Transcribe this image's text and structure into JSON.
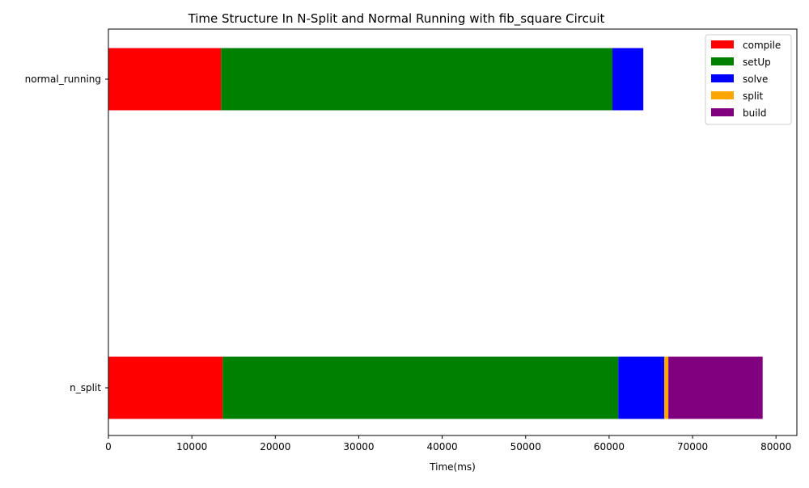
{
  "chart_data": {
    "type": "bar",
    "orientation": "horizontal",
    "stacked": true,
    "title": "Time Structure In N-Split and Normal Running with fib_square Circuit",
    "xlabel": "Time(ms)",
    "ylabel": "",
    "xlim": [
      0,
      82500
    ],
    "xticks": [
      0,
      10000,
      20000,
      30000,
      40000,
      50000,
      60000,
      70000,
      80000
    ],
    "xtick_labels": [
      "0",
      "10000",
      "20000",
      "30000",
      "40000",
      "50000",
      "60000",
      "70000",
      "80000"
    ],
    "categories": [
      "normal_running",
      "n_split"
    ],
    "series": [
      {
        "name": "compile",
        "color": "#ff0000",
        "values": [
          13500,
          13700
        ]
      },
      {
        "name": "setUp",
        "color": "#008000",
        "values": [
          46900,
          47400
        ]
      },
      {
        "name": "solve",
        "color": "#0000ff",
        "values": [
          3700,
          5500
        ]
      },
      {
        "name": "split",
        "color": "#ffa500",
        "values": [
          0,
          500
        ]
      },
      {
        "name": "build",
        "color": "#800080",
        "values": [
          0,
          11300
        ]
      }
    ],
    "legend_position": "top-right",
    "grid": false
  }
}
